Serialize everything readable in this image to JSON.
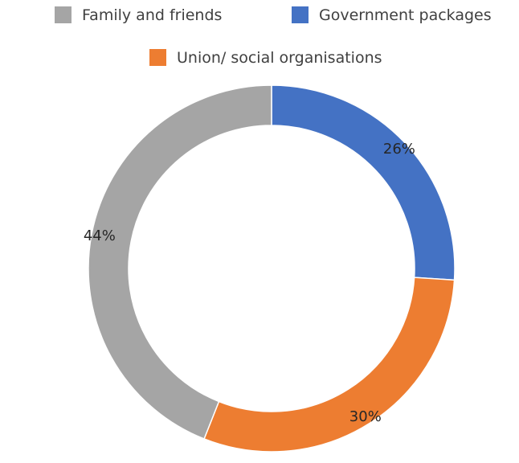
{
  "chart_data": {
    "type": "pie",
    "subtype": "doughnut",
    "categories": [
      "Family and friends",
      "Government packages",
      "Union/ social organisations"
    ],
    "values": [
      44,
      26,
      30
    ],
    "data_labels": [
      "44%",
      "26%",
      "30%"
    ],
    "colors": [
      "#a5a5a5",
      "#4472c4",
      "#ed7d31"
    ],
    "legend_position": "top",
    "title": "",
    "start_angle_deg": 0,
    "slice_order": [
      "Government packages",
      "Union/ social organisations",
      "Family and friends"
    ]
  }
}
